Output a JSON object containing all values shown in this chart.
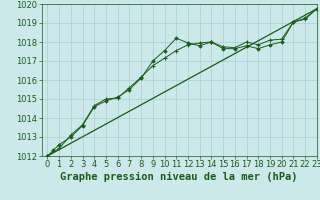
{
  "background_color": "#cce8ea",
  "plot_bg_color": "#cce8ea",
  "grid_color": "#aacdd0",
  "line_color": "#1a5c1a",
  "title": "Graphe pression niveau de la mer (hPa)",
  "xlim": [
    -0.5,
    23
  ],
  "ylim": [
    1012,
    1020
  ],
  "yticks": [
    1012,
    1013,
    1014,
    1015,
    1016,
    1017,
    1018,
    1019,
    1020
  ],
  "xticks": [
    0,
    1,
    2,
    3,
    4,
    5,
    6,
    7,
    8,
    9,
    10,
    11,
    12,
    13,
    14,
    15,
    16,
    17,
    18,
    19,
    20,
    21,
    22,
    23
  ],
  "series1_x": [
    0,
    0.5,
    1,
    2,
    3,
    4,
    5,
    6,
    7,
    8,
    9,
    10,
    11,
    12,
    13,
    14,
    15,
    16,
    17,
    18,
    19,
    20,
    21,
    22,
    23
  ],
  "series1_y": [
    1012.0,
    1012.3,
    1012.6,
    1013.0,
    1013.6,
    1014.6,
    1014.9,
    1015.1,
    1015.5,
    1016.1,
    1017.0,
    1017.55,
    1018.2,
    1017.95,
    1017.8,
    1018.0,
    1017.65,
    1017.65,
    1017.8,
    1017.65,
    1017.85,
    1018.0,
    1019.05,
    1019.25,
    1019.75
  ],
  "series2_x": [
    0,
    1,
    2,
    3,
    4,
    5,
    6,
    7,
    8,
    9,
    10,
    11,
    12,
    13,
    14,
    15,
    16,
    17,
    18,
    19,
    20,
    21,
    22,
    23
  ],
  "series2_y": [
    1012.0,
    1012.4,
    1013.1,
    1013.65,
    1014.65,
    1015.0,
    1015.05,
    1015.6,
    1016.15,
    1016.75,
    1017.15,
    1017.55,
    1017.85,
    1017.95,
    1018.0,
    1017.75,
    1017.7,
    1018.0,
    1017.85,
    1018.1,
    1018.15,
    1019.05,
    1019.2,
    1019.75
  ],
  "trend_x": [
    0,
    23
  ],
  "trend_y": [
    1012.0,
    1019.75
  ],
  "title_fontsize": 7.5,
  "tick_fontsize": 6.0,
  "marker1": "D",
  "marker2": "+"
}
